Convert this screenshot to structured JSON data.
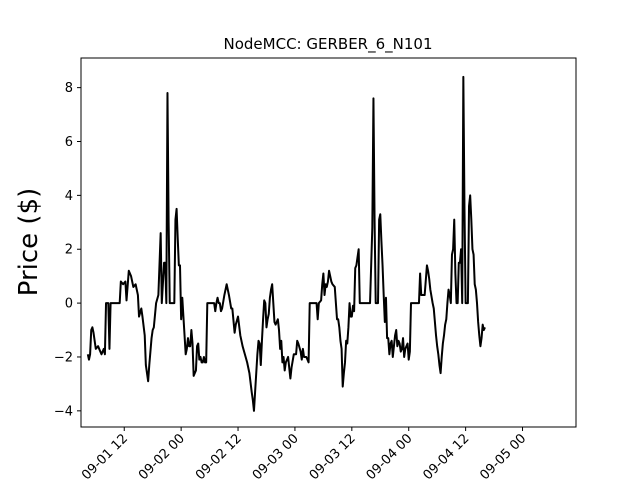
{
  "chart_data": {
    "type": "line",
    "title": "NodeMCC: GERBER_6_N101",
    "xlabel": "",
    "ylabel": "Price ($)",
    "ylim": [
      -4.6,
      9.1
    ],
    "y_ticks": [
      -4,
      -2,
      0,
      2,
      4,
      6,
      8
    ],
    "x_ticks": [
      {
        "x": 0.5,
        "label": "09-01 12"
      },
      {
        "x": 1.0,
        "label": "09-02 00"
      },
      {
        "x": 1.5,
        "label": "09-02 12"
      },
      {
        "x": 2.0,
        "label": "09-03 00"
      },
      {
        "x": 2.5,
        "label": "09-03 12"
      },
      {
        "x": 3.0,
        "label": "09-04 00"
      },
      {
        "x": 3.5,
        "label": "09-04 12"
      },
      {
        "x": 4.0,
        "label": "09-05 00"
      }
    ],
    "x_unit": "days since 09-01 00",
    "xlim": [
      0.12,
      4.47
    ],
    "color": "#000000",
    "series": [
      {
        "name": "",
        "points": [
          [
            0.18,
            -1.9
          ],
          [
            0.19,
            -2.1
          ],
          [
            0.2,
            -1.9
          ],
          [
            0.21,
            -1.0
          ],
          [
            0.22,
            -0.9
          ],
          [
            0.23,
            -1.1
          ],
          [
            0.25,
            -1.7
          ],
          [
            0.27,
            -1.6
          ],
          [
            0.29,
            -1.8
          ],
          [
            0.3,
            -1.9
          ],
          [
            0.32,
            -1.7
          ],
          [
            0.33,
            -1.9
          ],
          [
            0.34,
            0.0
          ],
          [
            0.36,
            0.0
          ],
          [
            0.37,
            -1.7
          ],
          [
            0.38,
            0.0
          ],
          [
            0.41,
            0.0
          ],
          [
            0.44,
            0.0
          ],
          [
            0.46,
            0.0
          ],
          [
            0.47,
            0.8
          ],
          [
            0.49,
            0.7
          ],
          [
            0.51,
            0.8
          ],
          [
            0.52,
            0.1
          ],
          [
            0.54,
            1.2
          ],
          [
            0.56,
            1.0
          ],
          [
            0.58,
            0.6
          ],
          [
            0.6,
            0.7
          ],
          [
            0.62,
            0.3
          ],
          [
            0.63,
            -0.5
          ],
          [
            0.65,
            -0.2
          ],
          [
            0.66,
            -0.5
          ],
          [
            0.68,
            -1.2
          ],
          [
            0.69,
            -2.3
          ],
          [
            0.71,
            -2.9
          ],
          [
            0.72,
            -2.3
          ],
          [
            0.74,
            -1.3
          ],
          [
            0.75,
            -1.0
          ],
          [
            0.76,
            -0.9
          ],
          [
            0.78,
            0.0
          ],
          [
            0.8,
            0.3
          ],
          [
            0.82,
            2.6
          ],
          [
            0.83,
            0.0
          ],
          [
            0.85,
            1.5
          ],
          [
            0.86,
            1.5
          ],
          [
            0.87,
            0.0
          ],
          [
            0.88,
            7.8
          ],
          [
            0.89,
            3.0
          ],
          [
            0.9,
            0.0
          ],
          [
            0.92,
            0.0
          ],
          [
            0.94,
            0.0
          ],
          [
            0.95,
            3.1
          ],
          [
            0.96,
            3.5
          ],
          [
            0.97,
            2.4
          ],
          [
            0.98,
            1.4
          ],
          [
            0.99,
            1.4
          ],
          [
            1.0,
            -0.6
          ],
          [
            1.01,
            0.2
          ],
          [
            1.02,
            -0.5
          ],
          [
            1.04,
            -1.9
          ],
          [
            1.05,
            -1.7
          ],
          [
            1.06,
            -1.3
          ],
          [
            1.07,
            -1.6
          ],
          [
            1.08,
            -1.6
          ],
          [
            1.09,
            -1.0
          ],
          [
            1.1,
            -1.5
          ],
          [
            1.11,
            -2.7
          ],
          [
            1.12,
            -2.6
          ],
          [
            1.13,
            -2.5
          ],
          [
            1.14,
            -1.6
          ],
          [
            1.15,
            -1.5
          ],
          [
            1.16,
            -2.1
          ],
          [
            1.17,
            -2.0
          ],
          [
            1.18,
            -2.2
          ],
          [
            1.19,
            -2.2
          ],
          [
            1.2,
            -2.0
          ],
          [
            1.21,
            -2.2
          ],
          [
            1.22,
            -2.2
          ],
          [
            1.23,
            0.0
          ],
          [
            1.25,
            0.0
          ],
          [
            1.27,
            0.0
          ],
          [
            1.29,
            0.0
          ],
          [
            1.3,
            -0.3
          ],
          [
            1.31,
            0.0
          ],
          [
            1.32,
            0.2
          ],
          [
            1.33,
            0.0
          ],
          [
            1.34,
            0.0
          ],
          [
            1.35,
            -0.3
          ],
          [
            1.36,
            -0.2
          ],
          [
            1.38,
            0.3
          ],
          [
            1.4,
            0.7
          ],
          [
            1.42,
            0.3
          ],
          [
            1.44,
            -0.2
          ],
          [
            1.45,
            -0.2
          ],
          [
            1.47,
            -1.1
          ],
          [
            1.48,
            -0.8
          ],
          [
            1.5,
            -0.5
          ],
          [
            1.52,
            -1.2
          ],
          [
            1.54,
            -1.6
          ],
          [
            1.56,
            -1.9
          ],
          [
            1.58,
            -2.2
          ],
          [
            1.6,
            -2.6
          ],
          [
            1.62,
            -3.3
          ],
          [
            1.63,
            -3.6
          ],
          [
            1.64,
            -4.0
          ],
          [
            1.65,
            -3.3
          ],
          [
            1.66,
            -2.6
          ],
          [
            1.67,
            -1.9
          ],
          [
            1.68,
            -1.4
          ],
          [
            1.69,
            -1.5
          ],
          [
            1.7,
            -2.3
          ],
          [
            1.71,
            -1.4
          ],
          [
            1.72,
            -0.6
          ],
          [
            1.73,
            0.1
          ],
          [
            1.74,
            0.0
          ],
          [
            1.75,
            -0.9
          ],
          [
            1.76,
            -0.6
          ],
          [
            1.77,
            -0.4
          ],
          [
            1.78,
            0.2
          ],
          [
            1.79,
            0.5
          ],
          [
            1.8,
            0.7
          ],
          [
            1.81,
            0.0
          ],
          [
            1.82,
            -0.7
          ],
          [
            1.83,
            -0.8
          ],
          [
            1.85,
            -0.6
          ],
          [
            1.86,
            -1.0
          ],
          [
            1.87,
            -1.7
          ],
          [
            1.88,
            -1.4
          ],
          [
            1.89,
            -2.2
          ],
          [
            1.9,
            -2.0
          ],
          [
            1.91,
            -2.5
          ],
          [
            1.92,
            -2.2
          ],
          [
            1.94,
            -2.0
          ],
          [
            1.96,
            -2.8
          ],
          [
            1.97,
            -2.4
          ],
          [
            1.99,
            -1.9
          ],
          [
            2.01,
            -1.9
          ],
          [
            2.02,
            -1.4
          ],
          [
            2.03,
            -1.5
          ],
          [
            2.05,
            -1.8
          ],
          [
            2.06,
            -2.1
          ],
          [
            2.07,
            -1.7
          ],
          [
            2.08,
            -2.0
          ],
          [
            2.09,
            -2.0
          ],
          [
            2.1,
            -2.0
          ],
          [
            2.11,
            -2.1
          ],
          [
            2.12,
            -2.2
          ],
          [
            2.13,
            0.0
          ],
          [
            2.15,
            0.0
          ],
          [
            2.17,
            0.0
          ],
          [
            2.19,
            0.0
          ],
          [
            2.2,
            -0.6
          ],
          [
            2.21,
            0.0
          ],
          [
            2.23,
            0.1
          ],
          [
            2.24,
            0.7
          ],
          [
            2.25,
            1.1
          ],
          [
            2.26,
            0.3
          ],
          [
            2.27,
            0.7
          ],
          [
            2.28,
            0.6
          ],
          [
            2.29,
            0.8
          ],
          [
            2.3,
            1.2
          ],
          [
            2.31,
            1.0
          ],
          [
            2.32,
            0.8
          ],
          [
            2.33,
            0.7
          ],
          [
            2.35,
            0.6
          ],
          [
            2.37,
            -0.6
          ],
          [
            2.38,
            -0.6
          ],
          [
            2.39,
            -0.9
          ],
          [
            2.4,
            -1.4
          ],
          [
            2.41,
            -1.7
          ],
          [
            2.42,
            -3.1
          ],
          [
            2.43,
            -2.6
          ],
          [
            2.44,
            -2.2
          ],
          [
            2.45,
            -1.4
          ],
          [
            2.46,
            -1.5
          ],
          [
            2.47,
            -0.9
          ],
          [
            2.48,
            0.0
          ],
          [
            2.49,
            -0.5
          ],
          [
            2.5,
            -0.5
          ],
          [
            2.51,
            -0.1
          ],
          [
            2.52,
            -0.3
          ],
          [
            2.53,
            1.3
          ],
          [
            2.54,
            1.4
          ],
          [
            2.55,
            1.7
          ],
          [
            2.56,
            2.0
          ],
          [
            2.57,
            0.0
          ],
          [
            2.6,
            0.0
          ],
          [
            2.63,
            0.0
          ],
          [
            2.66,
            0.0
          ],
          [
            2.68,
            2.8
          ],
          [
            2.69,
            7.6
          ],
          [
            2.7,
            3.0
          ],
          [
            2.71,
            0.0
          ],
          [
            2.73,
            0.0
          ],
          [
            2.74,
            3.1
          ],
          [
            2.75,
            3.3
          ],
          [
            2.76,
            2.3
          ],
          [
            2.77,
            1.4
          ],
          [
            2.78,
            0.3
          ],
          [
            2.79,
            -0.7
          ],
          [
            2.8,
            0.2
          ],
          [
            2.81,
            -1.3
          ],
          [
            2.82,
            -1.3
          ],
          [
            2.83,
            -1.9
          ],
          [
            2.84,
            -1.5
          ],
          [
            2.85,
            -1.4
          ],
          [
            2.86,
            -2.0
          ],
          [
            2.87,
            -1.6
          ],
          [
            2.88,
            -1.2
          ],
          [
            2.89,
            -1.0
          ],
          [
            2.9,
            -1.6
          ],
          [
            2.91,
            -1.4
          ],
          [
            2.92,
            -1.5
          ],
          [
            2.93,
            -1.8
          ],
          [
            2.94,
            -1.7
          ],
          [
            2.95,
            -1.3
          ],
          [
            2.96,
            -2.0
          ],
          [
            2.97,
            -1.7
          ],
          [
            2.98,
            -1.6
          ],
          [
            2.99,
            -1.5
          ],
          [
            3.0,
            -2.1
          ],
          [
            3.01,
            -1.8
          ],
          [
            3.02,
            0.0
          ],
          [
            3.04,
            0.0
          ],
          [
            3.06,
            0.0
          ],
          [
            3.08,
            0.0
          ],
          [
            3.09,
            0.0
          ],
          [
            3.1,
            1.1
          ],
          [
            3.11,
            0.3
          ],
          [
            3.12,
            0.3
          ],
          [
            3.13,
            0.3
          ],
          [
            3.14,
            0.3
          ],
          [
            3.16,
            1.4
          ],
          [
            3.17,
            1.2
          ],
          [
            3.18,
            0.9
          ],
          [
            3.19,
            0.5
          ],
          [
            3.21,
            0.0
          ],
          [
            3.22,
            -0.2
          ],
          [
            3.23,
            -0.7
          ],
          [
            3.24,
            -1.2
          ],
          [
            3.25,
            -1.6
          ],
          [
            3.26,
            -1.9
          ],
          [
            3.27,
            -2.3
          ],
          [
            3.28,
            -2.6
          ],
          [
            3.29,
            -2.0
          ],
          [
            3.3,
            -1.5
          ],
          [
            3.31,
            -1.2
          ],
          [
            3.32,
            -0.8
          ],
          [
            3.33,
            -0.6
          ],
          [
            3.34,
            0.0
          ],
          [
            3.35,
            0.5
          ],
          [
            3.36,
            0.3
          ],
          [
            3.37,
            0.0
          ],
          [
            3.38,
            1.8
          ],
          [
            3.39,
            2.0
          ],
          [
            3.4,
            3.1
          ],
          [
            3.41,
            1.1
          ],
          [
            3.42,
            0.0
          ],
          [
            3.43,
            0.0
          ],
          [
            3.44,
            1.5
          ],
          [
            3.45,
            1.5
          ],
          [
            3.46,
            2.0
          ],
          [
            3.47,
            0.0
          ],
          [
            3.48,
            8.4
          ],
          [
            3.49,
            3.5
          ],
          [
            3.5,
            0.0
          ],
          [
            3.51,
            0.0
          ],
          [
            3.52,
            0.0
          ],
          [
            3.53,
            3.6
          ],
          [
            3.54,
            4.0
          ],
          [
            3.55,
            3.1
          ],
          [
            3.56,
            2.0
          ],
          [
            3.57,
            1.8
          ],
          [
            3.58,
            0.7
          ],
          [
            3.59,
            0.5
          ],
          [
            3.6,
            0.0
          ],
          [
            3.61,
            -0.7
          ],
          [
            3.62,
            -1.2
          ],
          [
            3.63,
            -1.6
          ],
          [
            3.64,
            -1.3
          ],
          [
            3.65,
            -0.8
          ],
          [
            3.66,
            -1.0
          ],
          [
            3.67,
            -0.9
          ]
        ]
      }
    ]
  }
}
